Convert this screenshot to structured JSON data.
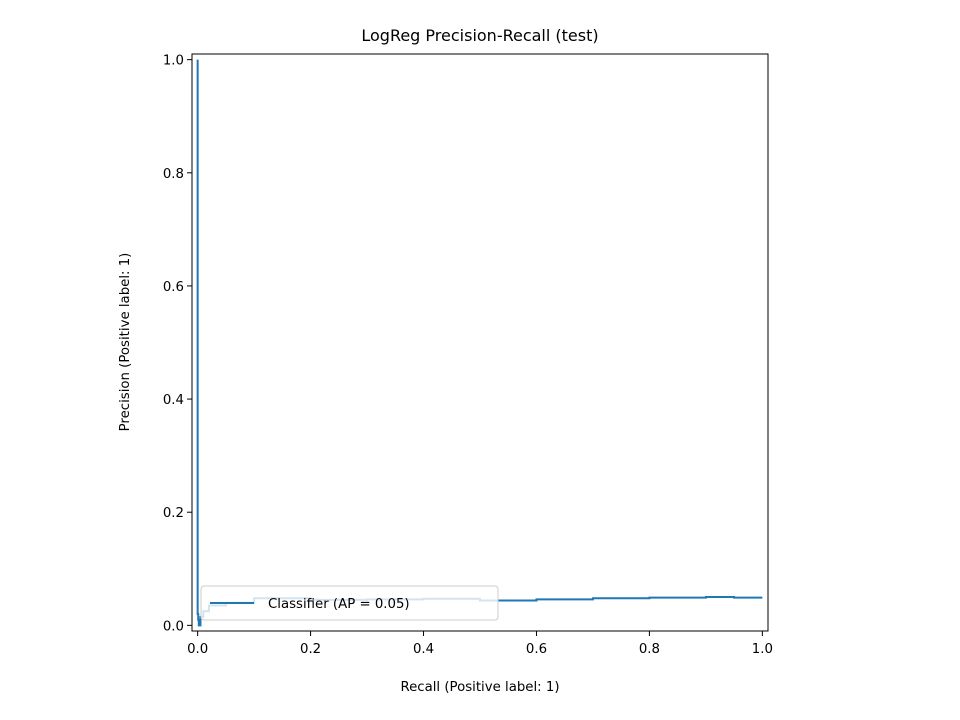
{
  "chart_data": {
    "type": "line",
    "title": "LogReg Precision-Recall (test)",
    "xlabel": "Recall (Positive label: 1)",
    "ylabel": "Precision (Positive label: 1)",
    "xlim": [
      -0.01,
      1.01
    ],
    "ylim": [
      -0.01,
      1.01
    ],
    "xticks": [
      "0.0",
      "0.2",
      "0.4",
      "0.6",
      "0.8",
      "1.0"
    ],
    "yticks": [
      "0.0",
      "0.2",
      "0.4",
      "0.6",
      "0.8",
      "1.0"
    ],
    "grid": false,
    "legend_position": "lower right",
    "series": [
      {
        "name": "Classifier (AP = 0.05)",
        "color": "#1f77b4",
        "drawstyle": "steps-post",
        "x": [
          1.0,
          0.95,
          0.9,
          0.8,
          0.7,
          0.6,
          0.5,
          0.4,
          0.3,
          0.2,
          0.1,
          0.05,
          0.02,
          0.01,
          0.005,
          0.002,
          0.001,
          0.0
        ],
        "y": [
          0.049,
          0.05,
          0.049,
          0.048,
          0.046,
          0.044,
          0.047,
          0.046,
          0.045,
          0.048,
          0.04,
          0.035,
          0.025,
          0.015,
          0.0,
          0.01,
          0.02,
          1.0
        ]
      }
    ]
  }
}
